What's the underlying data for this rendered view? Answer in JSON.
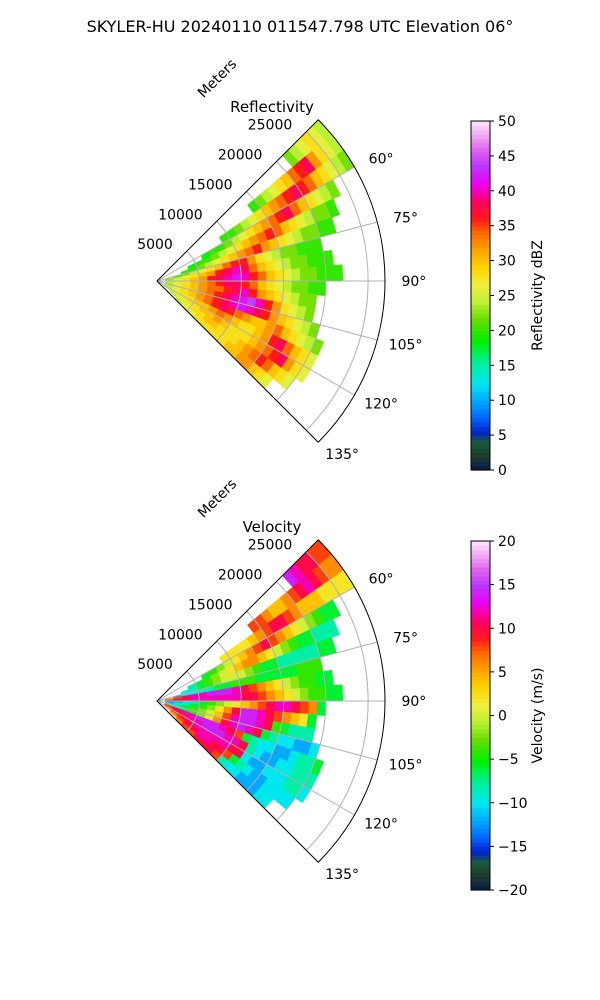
{
  "figure": {
    "suptitle": "SKYLER-HU  20240110  011547.798 UTC Elevation 06°"
  },
  "chart_data": [
    {
      "type": "heatmap",
      "subtype": "radar-ppi-polar-sector",
      "title": "Reflectivity",
      "radial_label": "Meters",
      "theta_range_deg": [
        45,
        135
      ],
      "r_max_m": 27000,
      "r_ticks": [
        "5000",
        "10000",
        "15000",
        "20000",
        "25000"
      ],
      "r_tick_values": [
        5000,
        10000,
        15000,
        20000,
        25000
      ],
      "theta_ticks": [
        "60°",
        "75°",
        "90°",
        "105°",
        "120°",
        "135°"
      ],
      "theta_tick_values": [
        60,
        75,
        90,
        105,
        120,
        135
      ],
      "grid": true,
      "colorbar": {
        "label": "Reflectivity dBZ",
        "range": [
          0,
          50
        ],
        "ticks": [
          "0",
          "5",
          "10",
          "15",
          "20",
          "25",
          "30",
          "35",
          "40",
          "45",
          "50"
        ],
        "colormap": "pyart_HomeyerRainbow"
      },
      "data_note_cells": "grid of mean dBZ by azimuth (rows 47.5..132.5 step 5 deg) and range (cols 1..26 km)",
      "azimuths_deg": [
        47.5,
        52.5,
        57.5,
        62.5,
        67.5,
        72.5,
        77.5,
        82.5,
        87.5,
        92.5,
        97.5,
        102.5,
        107.5,
        112.5,
        117.5,
        122.5,
        127.5,
        132.5
      ],
      "ranges_km": [
        1,
        2,
        3,
        4,
        5,
        6,
        7,
        8,
        9,
        10,
        11,
        12,
        13,
        14,
        15,
        16,
        17,
        18,
        19,
        20,
        21,
        22,
        23,
        24,
        25,
        26
      ],
      "values": [
        [
          null,
          null,
          null,
          null,
          null,
          null,
          null,
          null,
          null,
          null,
          null,
          null,
          null,
          null,
          null,
          null,
          null,
          null,
          null,
          null,
          22,
          24,
          26,
          28,
          26,
          24
        ],
        [
          null,
          null,
          null,
          null,
          null,
          null,
          null,
          null,
          null,
          null,
          null,
          null,
          null,
          20,
          22,
          24,
          26,
          28,
          30,
          34,
          36,
          38,
          32,
          28,
          26,
          24
        ],
        [
          null,
          null,
          null,
          null,
          null,
          null,
          null,
          null,
          20,
          20,
          22,
          24,
          26,
          28,
          30,
          32,
          34,
          36,
          38,
          36,
          34,
          30,
          28,
          26,
          24,
          22
        ],
        [
          null,
          null,
          null,
          null,
          null,
          18,
          20,
          20,
          22,
          24,
          26,
          28,
          30,
          32,
          34,
          36,
          38,
          34,
          30,
          28,
          26,
          24,
          22,
          null,
          null,
          null
        ],
        [
          null,
          null,
          null,
          18,
          20,
          20,
          22,
          24,
          26,
          28,
          30,
          32,
          34,
          36,
          34,
          30,
          28,
          26,
          24,
          22,
          22,
          20,
          null,
          null,
          null,
          null
        ],
        [
          null,
          null,
          20,
          20,
          22,
          24,
          26,
          28,
          30,
          32,
          34,
          36,
          32,
          30,
          28,
          26,
          24,
          22,
          22,
          20,
          20,
          null,
          null,
          null,
          null,
          null
        ],
        [
          null,
          20,
          22,
          24,
          26,
          28,
          30,
          34,
          36,
          36,
          32,
          28,
          26,
          24,
          22,
          22,
          20,
          20,
          20,
          null,
          null,
          null,
          null,
          null,
          null,
          null
        ],
        [
          22,
          24,
          26,
          28,
          30,
          32,
          36,
          38,
          40,
          38,
          34,
          30,
          28,
          26,
          24,
          22,
          22,
          20,
          20,
          20,
          null,
          null,
          null,
          null,
          null,
          null
        ],
        [
          24,
          26,
          28,
          30,
          32,
          36,
          38,
          40,
          42,
          40,
          36,
          34,
          30,
          28,
          26,
          24,
          22,
          22,
          20,
          20,
          20,
          null,
          null,
          null,
          null,
          null
        ],
        [
          24,
          26,
          28,
          30,
          32,
          34,
          36,
          38,
          38,
          36,
          34,
          30,
          28,
          26,
          24,
          22,
          22,
          20,
          20,
          null,
          null,
          null,
          null,
          null,
          null,
          null
        ],
        [
          24,
          26,
          28,
          30,
          32,
          34,
          34,
          36,
          38,
          40,
          36,
          32,
          30,
          28,
          26,
          24,
          22,
          22,
          null,
          null,
          null,
          null,
          null,
          null,
          null,
          null
        ],
        [
          24,
          26,
          28,
          30,
          32,
          34,
          36,
          38,
          40,
          42,
          44,
          40,
          36,
          32,
          28,
          26,
          24,
          22,
          null,
          null,
          null,
          null,
          null,
          null,
          null,
          null
        ],
        [
          24,
          26,
          28,
          30,
          32,
          34,
          36,
          38,
          40,
          42,
          40,
          38,
          36,
          32,
          30,
          28,
          26,
          24,
          22,
          null,
          null,
          null,
          null,
          null,
          null,
          null
        ],
        [
          24,
          26,
          28,
          30,
          32,
          34,
          36,
          38,
          36,
          34,
          32,
          30,
          30,
          32,
          34,
          30,
          28,
          26,
          24,
          22,
          null,
          null,
          null,
          null,
          null,
          null
        ],
        [
          24,
          26,
          28,
          28,
          30,
          30,
          32,
          34,
          32,
          30,
          28,
          28,
          30,
          32,
          36,
          38,
          34,
          30,
          28,
          26,
          null,
          null,
          null,
          null,
          null,
          null
        ],
        [
          24,
          26,
          26,
          28,
          28,
          30,
          30,
          32,
          30,
          28,
          28,
          28,
          30,
          32,
          34,
          36,
          38,
          32,
          28,
          26,
          null,
          null,
          null,
          null,
          null,
          null
        ],
        [
          null,
          24,
          26,
          26,
          28,
          28,
          30,
          30,
          28,
          28,
          28,
          30,
          32,
          34,
          36,
          34,
          30,
          28,
          26,
          null,
          null,
          null,
          null,
          null,
          null,
          null
        ],
        [
          null,
          null,
          24,
          26,
          26,
          28,
          28,
          28,
          28,
          28,
          30,
          30,
          32,
          32,
          30,
          28,
          26,
          null,
          null,
          null,
          null,
          null,
          null,
          null,
          null,
          null
        ]
      ]
    },
    {
      "type": "heatmap",
      "subtype": "radar-ppi-polar-sector",
      "title": "Velocity",
      "radial_label": "Meters",
      "theta_range_deg": [
        45,
        135
      ],
      "r_max_m": 27000,
      "r_ticks": [
        "5000",
        "10000",
        "15000",
        "20000",
        "25000"
      ],
      "r_tick_values": [
        5000,
        10000,
        15000,
        20000,
        25000
      ],
      "theta_ticks": [
        "60°",
        "75°",
        "90°",
        "105°",
        "120°",
        "135°"
      ],
      "theta_tick_values": [
        60,
        75,
        90,
        105,
        120,
        135
      ],
      "grid": true,
      "colorbar": {
        "label": "Velocity (m/s)",
        "range": [
          -20,
          20
        ],
        "ticks": [
          "−20",
          "−15",
          "−10",
          "−5",
          "0",
          "5",
          "10",
          "15",
          "20"
        ],
        "colormap": "pyart_HomeyerRainbow"
      },
      "azimuths_deg": [
        47.5,
        52.5,
        57.5,
        62.5,
        67.5,
        72.5,
        77.5,
        82.5,
        87.5,
        92.5,
        97.5,
        102.5,
        107.5,
        112.5,
        117.5,
        122.5,
        127.5,
        132.5
      ],
      "ranges_km": [
        1,
        2,
        3,
        4,
        5,
        6,
        7,
        8,
        9,
        10,
        11,
        12,
        13,
        14,
        15,
        16,
        17,
        18,
        19,
        20,
        21,
        22,
        23,
        24,
        25,
        26
      ],
      "values": [
        [
          null,
          null,
          null,
          null,
          null,
          null,
          null,
          null,
          null,
          null,
          null,
          null,
          null,
          null,
          null,
          null,
          null,
          null,
          null,
          null,
          14,
          12,
          10,
          10,
          8,
          8
        ],
        [
          null,
          null,
          null,
          null,
          null,
          null,
          null,
          null,
          null,
          null,
          null,
          null,
          null,
          8,
          8,
          6,
          4,
          4,
          6,
          8,
          10,
          12,
          10,
          8,
          6,
          6
        ],
        [
          null,
          null,
          null,
          null,
          null,
          null,
          null,
          null,
          2,
          2,
          2,
          2,
          4,
          6,
          8,
          10,
          10,
          8,
          6,
          4,
          4,
          4,
          2,
          2,
          2,
          2
        ],
        [
          null,
          null,
          null,
          null,
          null,
          -6,
          -4,
          -2,
          0,
          2,
          4,
          6,
          8,
          10,
          8,
          6,
          4,
          2,
          0,
          -2,
          -4,
          -6,
          -6,
          null,
          null,
          null
        ],
        [
          null,
          null,
          null,
          -8,
          -6,
          -4,
          -2,
          0,
          2,
          4,
          6,
          6,
          4,
          2,
          0,
          -2,
          -4,
          -6,
          -6,
          -8,
          -8,
          -8,
          null,
          null,
          null,
          null
        ],
        [
          null,
          null,
          -10,
          -8,
          -6,
          -4,
          -2,
          0,
          0,
          0,
          -2,
          -4,
          -6,
          -6,
          -8,
          -8,
          -8,
          -8,
          -8,
          -6,
          -6,
          null,
          null,
          null,
          null,
          null
        ],
        [
          null,
          -12,
          -10,
          -10,
          -8,
          -8,
          -6,
          -6,
          -4,
          -4,
          -4,
          -6,
          -6,
          -6,
          -6,
          -6,
          -4,
          -4,
          -4,
          null,
          null,
          null,
          null,
          null,
          null,
          null
        ],
        [
          6,
          8,
          10,
          12,
          12,
          14,
          14,
          14,
          12,
          10,
          8,
          6,
          4,
          2,
          0,
          -2,
          -4,
          -4,
          -6,
          -6,
          null,
          null,
          null,
          null,
          null,
          null
        ],
        [
          8,
          10,
          10,
          12,
          12,
          12,
          12,
          12,
          12,
          10,
          10,
          8,
          6,
          4,
          2,
          0,
          -2,
          -4,
          -4,
          -6,
          -6,
          null,
          null,
          null,
          null,
          null
        ],
        [
          -14,
          -12,
          -10,
          -8,
          -6,
          -4,
          -2,
          0,
          2,
          4,
          6,
          8,
          10,
          12,
          12,
          10,
          8,
          6,
          -6,
          null,
          null,
          null,
          null,
          null,
          null,
          null
        ],
        [
          -12,
          -10,
          -8,
          -6,
          -4,
          -2,
          2,
          6,
          10,
          14,
          14,
          12,
          10,
          8,
          6,
          4,
          2,
          -6,
          null,
          null,
          null,
          null,
          null,
          null,
          null,
          null
        ],
        [
          -10,
          -8,
          -6,
          -4,
          -2,
          0,
          4,
          8,
          12,
          14,
          14,
          12,
          10,
          -4,
          -6,
          -8,
          -8,
          -8,
          null,
          null,
          null,
          null,
          null,
          null,
          null,
          null
        ],
        [
          -10,
          -8,
          -6,
          -4,
          -2,
          2,
          6,
          10,
          12,
          14,
          12,
          10,
          -6,
          -8,
          -10,
          -10,
          -12,
          -12,
          -10,
          null,
          null,
          null,
          null,
          null,
          null,
          null
        ],
        [
          8,
          10,
          12,
          12,
          14,
          14,
          14,
          12,
          10,
          8,
          -6,
          -8,
          -10,
          -10,
          -12,
          -12,
          -10,
          -8,
          -8,
          -6,
          null,
          null,
          null,
          null,
          null,
          null
        ],
        [
          8,
          10,
          10,
          12,
          12,
          14,
          14,
          14,
          12,
          12,
          10,
          -8,
          -10,
          -12,
          -12,
          -10,
          -10,
          -8,
          -8,
          -8,
          null,
          null,
          null,
          null,
          null,
          null
        ],
        [
          6,
          8,
          10,
          10,
          12,
          12,
          12,
          12,
          12,
          10,
          10,
          -10,
          -12,
          -12,
          -10,
          -10,
          -10,
          -8,
          -8,
          -10,
          null,
          null,
          null,
          null,
          null,
          null
        ],
        [
          null,
          6,
          8,
          10,
          10,
          12,
          12,
          10,
          10,
          8,
          -6,
          -8,
          -10,
          -12,
          -12,
          -10,
          -10,
          -10,
          -10,
          null,
          null,
          null,
          null,
          null,
          null,
          null
        ],
        [
          null,
          null,
          6,
          8,
          8,
          10,
          10,
          10,
          8,
          -8,
          -10,
          -10,
          -12,
          -12,
          -12,
          -10,
          -10,
          null,
          null,
          null,
          null,
          null,
          null,
          null,
          null,
          null
        ]
      ]
    }
  ]
}
